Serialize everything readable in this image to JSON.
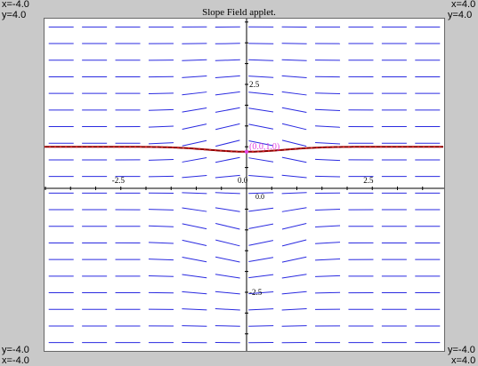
{
  "title": "Slope Field applet.",
  "corners": {
    "top_left_x": "x=-4.0",
    "top_left_y": "y=4.0",
    "top_right_x": "x=4.0",
    "top_right_y": "y=4.0",
    "bottom_left_y": "y=-4.0",
    "bottom_left_x": "x=-4.0",
    "bottom_right_y": "y=-4.0",
    "bottom_right_x": "x=4.0"
  },
  "axes": {
    "x_tick_labels": [
      "-2.5",
      "0.0",
      "2.5"
    ],
    "y_tick_labels": [
      "2.5",
      "-2.5"
    ],
    "x_range": [
      -4.0,
      4.0
    ],
    "y_range": [
      -4.0,
      4.0
    ]
  },
  "point_label": "(0.0,1.0)",
  "colors": {
    "field": "#2a2ae0",
    "solution": "#8b0000",
    "solution_dots": "#cc2222",
    "label": "#e040e0",
    "axis": "#000000",
    "background": "#c9c9c9"
  }
}
